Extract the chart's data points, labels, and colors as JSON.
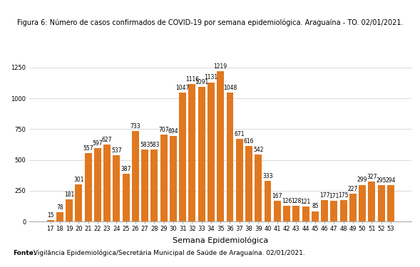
{
  "title": "Figura 6: Número de casos confirmados de COVID-19 por semana epidemiológica. Araguaína - TO. 02/01/2021.",
  "xlabel": "Semana Epidemiológica",
  "footnote_bold": "Fonte:",
  "footnote_rest": " Vigilância Epidemiológica/Secretária Municipal de Saúde de Araguaína. 02/01/2021.",
  "weeks": [
    17,
    18,
    19,
    20,
    21,
    22,
    23,
    24,
    25,
    26,
    27,
    28,
    29,
    30,
    31,
    32,
    33,
    34,
    35,
    36,
    37,
    38,
    39,
    40,
    41,
    42,
    43,
    44,
    45,
    46,
    47,
    48,
    49,
    50,
    51,
    52,
    53
  ],
  "values": [
    15,
    78,
    181,
    301,
    557,
    597,
    627,
    537,
    387,
    733,
    583,
    583,
    707,
    694,
    1047,
    1116,
    1091,
    1131,
    1219,
    1048,
    671,
    616,
    542,
    333,
    167,
    126,
    128,
    121,
    85,
    177,
    171,
    175,
    227,
    299,
    327,
    295,
    294
  ],
  "bar_color": "#E07820",
  "ylim": [
    0,
    1300
  ],
  "yticks": [
    0,
    250,
    500,
    750,
    1000,
    1250
  ],
  "background_color": "#ffffff",
  "title_fontsize": 7.0,
  "label_fontsize": 5.5,
  "tick_fontsize": 6.0,
  "xlabel_fontsize": 8.0,
  "footnote_fontsize": 6.5
}
